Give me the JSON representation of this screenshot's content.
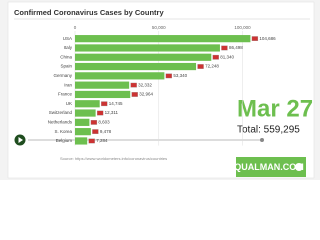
{
  "chart_data": {
    "type": "bar",
    "orientation": "horizontal",
    "title": "Confirmed Coronavirus Cases by Country",
    "categories": [
      "USA",
      "Italy",
      "China",
      "Spain",
      "Germany",
      "Iran",
      "France",
      "UK",
      "Switzerland",
      "Netherlands",
      "S. Korea",
      "Belgium"
    ],
    "values": [
      104686,
      86498,
      81340,
      72248,
      53340,
      32332,
      32964,
      14745,
      12311,
      8603,
      9478,
      7284
    ],
    "value_labels": [
      "104,686",
      "86,498",
      "81,340",
      "72,248",
      "53,340",
      "32,332",
      "32,964",
      "14,745",
      "12,311",
      "8,603",
      "9,478",
      "7,284"
    ],
    "color": "#6dbf4f",
    "xlim": [
      0,
      111000
    ],
    "xticks": [
      0,
      {
        "value": 50000,
        "label": "50,000"
      },
      {
        "value": 100000,
        "label": "100,000"
      }
    ],
    "grid": true,
    "date": "Mar 27",
    "total": "Total: 559,295",
    "source": "Source: https://www.worldometers.info/coronavirus/countries",
    "logo": "EQUALMAN.COM"
  }
}
